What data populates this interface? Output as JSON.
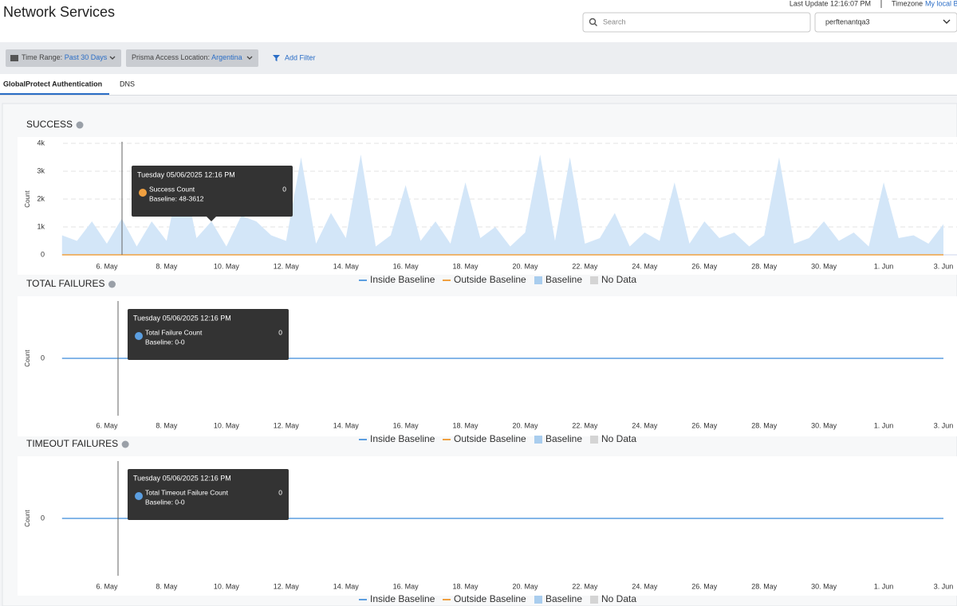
{
  "header": {
    "title": "Network Services",
    "last_update": "Last Update 12:16:07 PM",
    "timezone_label": "Timezone",
    "timezone_value": "My local B",
    "search_placeholder": "Search",
    "tenant": "perftenantqa3"
  },
  "filters": {
    "items": [
      {
        "label": "Time Range:",
        "value": "Past 30 Days"
      },
      {
        "label": "Prisma Access Location:",
        "value": "Argentina"
      }
    ],
    "add": "Add Filter"
  },
  "tabs": {
    "items": [
      "GlobalProtect Authentication",
      "DNS"
    ],
    "active": 0
  },
  "chart_data": [
    {
      "type": "area",
      "title": "SUCCESS",
      "y_label": "Count",
      "categories": [
        null,
        null,
        null,
        "6. May",
        null,
        null,
        null,
        "8. May",
        null,
        null,
        null,
        "10. May",
        null,
        null,
        null,
        "12. May",
        null,
        null,
        null,
        "14. May",
        null,
        null,
        null,
        "16. May",
        null,
        null,
        null,
        "18. May",
        null,
        null,
        null,
        "20. May",
        null,
        null,
        null,
        "22. May",
        null,
        null,
        null,
        "24. May",
        null,
        null,
        null,
        "26. May",
        null,
        null,
        null,
        "28. May",
        null,
        null,
        null,
        "30. May",
        null,
        null,
        null,
        "1. Jun",
        null,
        null,
        null,
        "3. Jun"
      ],
      "baseline": {
        "color": "#d3e6f8",
        "values": [
          700,
          500,
          1200,
          400,
          1300,
          300,
          1200,
          500,
          3200,
          600,
          1200,
          300,
          1400,
          1200,
          700,
          500,
          3500,
          400,
          1500,
          600,
          3600,
          300,
          700,
          2500,
          500,
          1200,
          400,
          2600,
          600,
          1000,
          300,
          800,
          3600,
          500,
          3500,
          400,
          600,
          1500,
          300,
          800,
          500,
          2600,
          400,
          1200,
          600,
          800,
          300,
          700,
          3500,
          400,
          600,
          1200,
          500,
          800,
          300,
          2600,
          600,
          700,
          400,
          1100
        ]
      },
      "count": {
        "color": "#f0a040",
        "values": [
          0,
          0,
          0,
          0,
          0,
          0,
          0,
          0,
          0,
          0,
          0,
          0,
          0,
          0,
          0,
          0,
          0,
          0,
          0,
          0,
          0,
          0,
          0,
          0,
          0,
          0,
          0,
          0,
          0,
          0,
          0,
          0,
          0,
          0,
          0,
          0,
          0,
          0,
          0,
          0,
          0,
          0,
          0,
          0,
          0,
          0,
          0,
          0,
          0,
          0,
          0,
          0,
          0,
          0,
          0,
          0,
          0,
          0,
          0,
          0
        ]
      },
      "ylim": [
        0,
        4000
      ],
      "yticks": [
        0,
        {
          "value": 1000,
          "label": "1k"
        },
        {
          "value": 2000,
          "label": "2k"
        },
        {
          "value": 3000,
          "label": "3k"
        },
        {
          "value": 4000,
          "label": "4k"
        }
      ],
      "grid": true,
      "legend": [
        {
          "name": "Inside Baseline",
          "color": "#5b9ee0",
          "shape": "line"
        },
        {
          "name": "Outside Baseline",
          "color": "#f0a040",
          "shape": "line"
        },
        {
          "name": "Baseline",
          "color": "#a9cdee",
          "shape": "square"
        },
        {
          "name": "No Data",
          "color": "#d4d4d4",
          "shape": "square"
        }
      ],
      "tooltip": {
        "title": "Tuesday 05/06/2025 12:16 PM",
        "label": "Success Count",
        "value": 0,
        "baseline": "Baseline: 48-3612",
        "color": "#f0a040"
      }
    },
    {
      "type": "line",
      "title": "TOTAL FAILURES",
      "y_label": "Count",
      "categories": [
        null,
        null,
        null,
        "6. May",
        null,
        null,
        null,
        "8. May",
        null,
        null,
        null,
        "10. May",
        null,
        null,
        null,
        "12. May",
        null,
        null,
        null,
        "14. May",
        null,
        null,
        null,
        "16. May",
        null,
        null,
        null,
        "18. May",
        null,
        null,
        null,
        "20. May",
        null,
        null,
        null,
        "22. May",
        null,
        null,
        null,
        "24. May",
        null,
        null,
        null,
        "26. May",
        null,
        null,
        null,
        "28. May",
        null,
        null,
        null,
        "30. May",
        null,
        null,
        null,
        "1. Jun",
        null,
        null,
        null,
        "3. Jun"
      ],
      "count": {
        "color": "#5b9ee0",
        "values": [
          0,
          0,
          0,
          0,
          0,
          0,
          0,
          0,
          0,
          0,
          0,
          0,
          0,
          0,
          0,
          0,
          0,
          0,
          0,
          0,
          0,
          0,
          0,
          0,
          0,
          0,
          0,
          0,
          0,
          0,
          0,
          0,
          0,
          0,
          0,
          0,
          0,
          0,
          0,
          0,
          0,
          0,
          0,
          0,
          0,
          0,
          0,
          0,
          0,
          0,
          0,
          0,
          0,
          0,
          0,
          0,
          0,
          0,
          0,
          0
        ]
      },
      "ylim": [
        -1,
        1
      ],
      "yticks": [
        0
      ],
      "grid": false,
      "legend": [
        {
          "name": "Inside Baseline",
          "color": "#5b9ee0",
          "shape": "line"
        },
        {
          "name": "Outside Baseline",
          "color": "#f0a040",
          "shape": "line"
        },
        {
          "name": "Baseline",
          "color": "#a9cdee",
          "shape": "square"
        },
        {
          "name": "No Data",
          "color": "#d4d4d4",
          "shape": "square"
        }
      ],
      "tooltip": {
        "title": "Tuesday 05/06/2025 12:16 PM",
        "label": "Total Failure Count",
        "value": 0,
        "baseline": "Baseline: 0-0",
        "color": "#5b9ee0"
      }
    },
    {
      "type": "line",
      "title": "TIMEOUT FAILURES",
      "y_label": "Count",
      "categories": [
        null,
        null,
        null,
        "6. May",
        null,
        null,
        null,
        "8. May",
        null,
        null,
        null,
        "10. May",
        null,
        null,
        null,
        "12. May",
        null,
        null,
        null,
        "14. May",
        null,
        null,
        null,
        "16. May",
        null,
        null,
        null,
        "18. May",
        null,
        null,
        null,
        "20. May",
        null,
        null,
        null,
        "22. May",
        null,
        null,
        null,
        "24. May",
        null,
        null,
        null,
        "26. May",
        null,
        null,
        null,
        "28. May",
        null,
        null,
        null,
        "30. May",
        null,
        null,
        null,
        "1. Jun",
        null,
        null,
        null,
        "3. Jun"
      ],
      "count": {
        "color": "#5b9ee0",
        "values": [
          0,
          0,
          0,
          0,
          0,
          0,
          0,
          0,
          0,
          0,
          0,
          0,
          0,
          0,
          0,
          0,
          0,
          0,
          0,
          0,
          0,
          0,
          0,
          0,
          0,
          0,
          0,
          0,
          0,
          0,
          0,
          0,
          0,
          0,
          0,
          0,
          0,
          0,
          0,
          0,
          0,
          0,
          0,
          0,
          0,
          0,
          0,
          0,
          0,
          0,
          0,
          0,
          0,
          0,
          0,
          0,
          0,
          0,
          0,
          0
        ]
      },
      "ylim": [
        -1,
        1
      ],
      "yticks": [
        0
      ],
      "grid": false,
      "legend": [
        {
          "name": "Inside Baseline",
          "color": "#5b9ee0",
          "shape": "line"
        },
        {
          "name": "Outside Baseline",
          "color": "#f0a040",
          "shape": "line"
        },
        {
          "name": "Baseline",
          "color": "#a9cdee",
          "shape": "square"
        },
        {
          "name": "No Data",
          "color": "#d4d4d4",
          "shape": "square"
        }
      ],
      "tooltip": {
        "title": "Tuesday 05/06/2025 12:16 PM",
        "label": "Total Timeout Failure Count",
        "value": 0,
        "baseline": "Baseline: 0-0",
        "color": "#5b9ee0"
      }
    }
  ]
}
